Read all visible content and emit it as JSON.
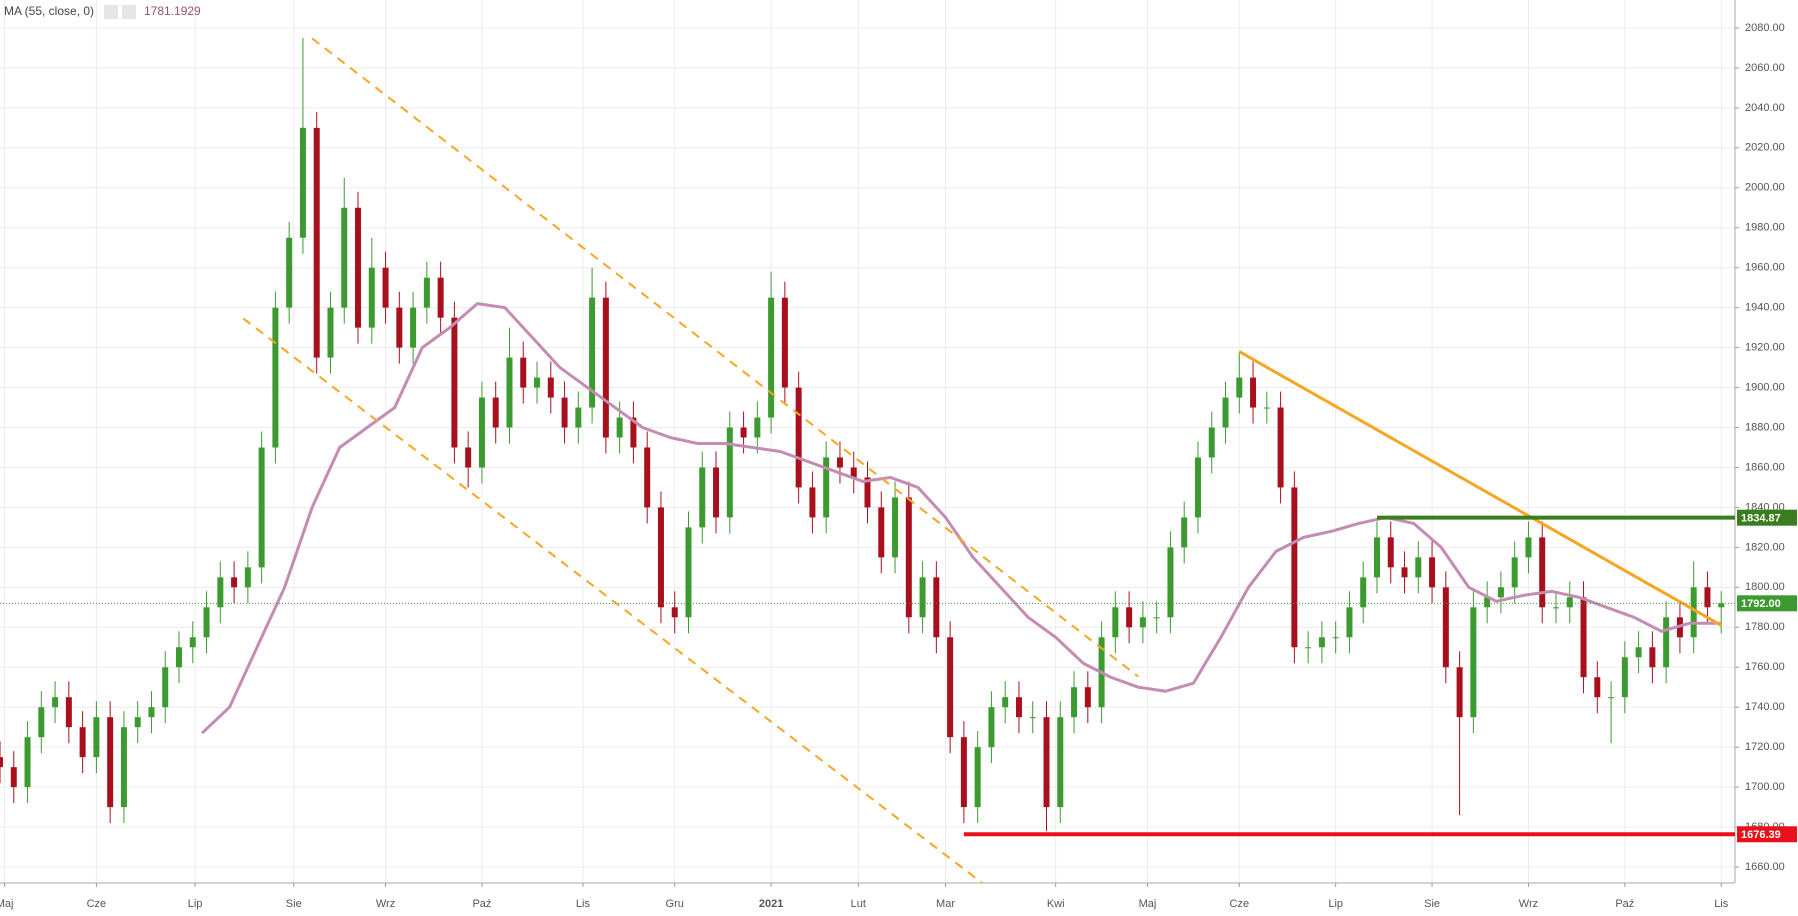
{
  "chart_data": {
    "type": "candlestick",
    "indicator_label": "MA (55, close, 0)",
    "indicator_value": 1781.1929,
    "up_color": "#3c9a31",
    "down_color": "#a8101e",
    "x": [
      0,
      3,
      6,
      9,
      12,
      15,
      18,
      21,
      24,
      27,
      30,
      33,
      36,
      39,
      42,
      45,
      48,
      51,
      54,
      57,
      60,
      63,
      66,
      69,
      72,
      75,
      78,
      81,
      84,
      87,
      90,
      93,
      96,
      99,
      102,
      105,
      108,
      111,
      114,
      117,
      120,
      123,
      126,
      129,
      132,
      135,
      138,
      141,
      144,
      147,
      150,
      153,
      156,
      159,
      162,
      165,
      168,
      171,
      174,
      177,
      180,
      183,
      186,
      189,
      192,
      195,
      198,
      201,
      204,
      207,
      210,
      213,
      216,
      219,
      222,
      225,
      228,
      231,
      234,
      237,
      240,
      243,
      246,
      249,
      252,
      255,
      258,
      261,
      264,
      267,
      270,
      273,
      276,
      279,
      282,
      285,
      288,
      291,
      294,
      297,
      300,
      303,
      306,
      309,
      312,
      315,
      318,
      321,
      324,
      327,
      330,
      333,
      336,
      339,
      342,
      345,
      348,
      351,
      354,
      357,
      360,
      363,
      366,
      369,
      372,
      375
    ],
    "open": [
      1715,
      1710,
      1700,
      1725,
      1740,
      1745,
      1730,
      1715,
      1735,
      1690,
      1730,
      1735,
      1740,
      1760,
      1770,
      1775,
      1790,
      1805,
      1800,
      1810,
      1870,
      1940,
      1975,
      2030,
      1915,
      1940,
      1990,
      1930,
      1960,
      1940,
      1920,
      1940,
      1955,
      1935,
      1870,
      1860,
      1895,
      1880,
      1915,
      1900,
      1905,
      1895,
      1880,
      1890,
      1945,
      1875,
      1885,
      1870,
      1840,
      1790,
      1785,
      1830,
      1860,
      1835,
      1880,
      1875,
      1885,
      1945,
      1900,
      1850,
      1835,
      1865,
      1860,
      1855,
      1840,
      1815,
      1845,
      1785,
      1805,
      1775,
      1725,
      1690,
      1720,
      1740,
      1745,
      1735,
      1735,
      1690,
      1735,
      1750,
      1740,
      1775,
      1790,
      1780,
      1785,
      1785,
      1820,
      1835,
      1865,
      1880,
      1895,
      1905,
      1890,
      1890,
      1850,
      1770,
      1770,
      1775,
      1775,
      1790,
      1805,
      1825,
      1810,
      1805,
      1815,
      1800,
      1760,
      1735,
      1790,
      1795,
      1800,
      1815,
      1825,
      1790,
      1790,
      1795,
      1755,
      1745,
      1745,
      1765,
      1770,
      1760,
      1785,
      1775,
      1800,
      1790
    ],
    "high": [
      1723,
      1718,
      1733,
      1748,
      1753,
      1753,
      1738,
      1743,
      1743,
      1738,
      1743,
      1748,
      1768,
      1778,
      1783,
      1798,
      1813,
      1813,
      1818,
      1878,
      1948,
      1983,
      2075,
      2038,
      1948,
      2005,
      1998,
      1975,
      1968,
      1948,
      1948,
      1963,
      1963,
      1943,
      1878,
      1903,
      1903,
      1930,
      1923,
      1913,
      1913,
      1903,
      1898,
      1960,
      1953,
      1893,
      1893,
      1878,
      1848,
      1798,
      1838,
      1868,
      1868,
      1888,
      1888,
      1893,
      1958,
      1953,
      1908,
      1858,
      1873,
      1873,
      1868,
      1863,
      1848,
      1853,
      1853,
      1813,
      1813,
      1783,
      1733,
      1728,
      1748,
      1753,
      1753,
      1743,
      1743,
      1743,
      1758,
      1758,
      1783,
      1798,
      1798,
      1793,
      1793,
      1828,
      1843,
      1873,
      1888,
      1903,
      1918,
      1913,
      1898,
      1898,
      1858,
      1778,
      1783,
      1783,
      1798,
      1813,
      1833,
      1833,
      1818,
      1823,
      1823,
      1808,
      1768,
      1798,
      1803,
      1808,
      1823,
      1833,
      1833,
      1798,
      1803,
      1803,
      1763,
      1753,
      1773,
      1778,
      1778,
      1793,
      1793,
      1813,
      1808,
      1798
    ],
    "low": [
      1702,
      1692,
      1692,
      1717,
      1732,
      1722,
      1707,
      1707,
      1682,
      1682,
      1722,
      1727,
      1732,
      1752,
      1762,
      1767,
      1782,
      1792,
      1792,
      1802,
      1862,
      1932,
      1967,
      1907,
      1907,
      1932,
      1922,
      1922,
      1932,
      1912,
      1912,
      1932,
      1927,
      1862,
      1850,
      1852,
      1872,
      1872,
      1892,
      1892,
      1887,
      1872,
      1872,
      1882,
      1867,
      1867,
      1862,
      1832,
      1782,
      1777,
      1777,
      1822,
      1827,
      1827,
      1867,
      1867,
      1877,
      1892,
      1842,
      1827,
      1827,
      1852,
      1847,
      1832,
      1807,
      1807,
      1777,
      1777,
      1767,
      1717,
      1682,
      1682,
      1712,
      1732,
      1727,
      1727,
      1678,
      1682,
      1727,
      1732,
      1732,
      1767,
      1772,
      1772,
      1777,
      1777,
      1812,
      1827,
      1857,
      1872,
      1887,
      1882,
      1882,
      1842,
      1762,
      1762,
      1762,
      1767,
      1767,
      1782,
      1797,
      1802,
      1797,
      1797,
      1792,
      1752,
      1686,
      1727,
      1782,
      1787,
      1792,
      1807,
      1782,
      1782,
      1782,
      1747,
      1737,
      1722,
      1737,
      1757,
      1752,
      1752,
      1767,
      1767,
      1782,
      1777
    ],
    "close": [
      1710,
      1700,
      1725,
      1740,
      1745,
      1730,
      1715,
      1735,
      1690,
      1730,
      1735,
      1740,
      1760,
      1770,
      1775,
      1790,
      1805,
      1800,
      1810,
      1870,
      1940,
      1975,
      2030,
      1915,
      1940,
      1990,
      1930,
      1960,
      1940,
      1920,
      1940,
      1955,
      1935,
      1870,
      1860,
      1895,
      1880,
      1915,
      1900,
      1905,
      1895,
      1880,
      1890,
      1945,
      1875,
      1885,
      1870,
      1840,
      1790,
      1785,
      1830,
      1860,
      1835,
      1880,
      1875,
      1885,
      1945,
      1900,
      1850,
      1835,
      1865,
      1860,
      1855,
      1840,
      1815,
      1845,
      1785,
      1805,
      1775,
      1725,
      1690,
      1720,
      1740,
      1745,
      1735,
      1735,
      1690,
      1735,
      1750,
      1740,
      1775,
      1790,
      1780,
      1785,
      1785,
      1820,
      1835,
      1865,
      1880,
      1895,
      1905,
      1890,
      1890,
      1850,
      1770,
      1770,
      1775,
      1775,
      1790,
      1805,
      1825,
      1810,
      1805,
      1815,
      1800,
      1760,
      1735,
      1790,
      1795,
      1800,
      1815,
      1825,
      1790,
      1790,
      1795,
      1755,
      1745,
      1745,
      1765,
      1770,
      1760,
      1785,
      1775,
      1800,
      1790,
      1792
    ],
    "ma": {
      "color": "#c48bb3",
      "x": [
        44,
        50,
        56,
        62,
        68,
        74,
        80,
        86,
        92,
        98,
        104,
        110,
        116,
        122,
        128,
        134,
        140,
        146,
        152,
        158,
        164,
        170,
        176,
        182,
        188,
        194,
        200,
        206,
        212,
        218,
        224,
        230,
        236,
        242,
        248,
        254,
        260,
        266,
        272,
        278,
        284,
        290,
        296,
        302,
        308,
        314,
        320,
        326,
        332,
        338,
        344,
        350,
        356,
        362,
        368,
        375
      ],
      "values": [
        1727,
        1740,
        1770,
        1800,
        1840,
        1870,
        1880,
        1890,
        1920,
        1930,
        1942,
        1940,
        1925,
        1910,
        1900,
        1890,
        1880,
        1875,
        1872,
        1872,
        1870,
        1868,
        1863,
        1858,
        1853,
        1855,
        1850,
        1835,
        1815,
        1800,
        1785,
        1775,
        1762,
        1755,
        1750,
        1748,
        1752,
        1775,
        1800,
        1818,
        1825,
        1828,
        1832,
        1835,
        1832,
        1820,
        1800,
        1793,
        1796,
        1798,
        1795,
        1790,
        1785,
        1778,
        1782,
        1782
      ]
    },
    "lines": [
      {
        "x": [
          68,
          248
        ],
        "y": [
          2074.8,
          1755.3
        ],
        "color": "#f5a623",
        "dashed": true
      },
      {
        "x": [
          53,
          214
        ],
        "y": [
          1934.6,
          1652
        ],
        "color": "#f5a623",
        "dashed": true
      },
      {
        "x": [
          270,
          375
        ],
        "y": [
          1918,
          1781
        ],
        "color": "#f5a623",
        "dashed": false
      }
    ],
    "levels": [
      {
        "value": 1834.87,
        "x_start": 300,
        "color": "#3a7d1e"
      },
      {
        "value": 1676.39,
        "x_start": 210,
        "color": "#e8101a"
      }
    ],
    "last_price": {
      "value": 1792,
      "label": "1792.00",
      "color": "#3c9a31"
    },
    "xlim": [
      0,
      378
    ],
    "ylim": [
      1652,
      2094
    ],
    "xticks": [
      {
        "value": 1,
        "label": "Maj"
      },
      {
        "value": 21,
        "label": "Cze"
      },
      {
        "value": 42.5,
        "label": "Lip"
      },
      {
        "value": 64,
        "label": "Sie"
      },
      {
        "value": 84,
        "label": "Wrz"
      },
      {
        "value": 105,
        "label": "Paź"
      },
      {
        "value": 127,
        "label": "Lis"
      },
      {
        "value": 147,
        "label": "Gru"
      },
      {
        "value": 168,
        "label": "2021"
      },
      {
        "value": 187,
        "label": "Lut"
      },
      {
        "value": 206,
        "label": "Mar"
      },
      {
        "value": 230,
        "label": "Kwi"
      },
      {
        "value": 250,
        "label": "Maj"
      },
      {
        "value": 270,
        "label": "Cze"
      },
      {
        "value": 291,
        "label": "Lip"
      },
      {
        "value": 312,
        "label": "Sie"
      },
      {
        "value": 333,
        "label": "Wrz"
      },
      {
        "value": 354,
        "label": "Paź"
      },
      {
        "value": 375,
        "label": "Lis"
      }
    ],
    "yticks": [
      {
        "value": 1660,
        "label": "1660.00"
      },
      {
        "value": 1680,
        "label": "1680.00"
      },
      {
        "value": 1700,
        "label": "1700.00"
      },
      {
        "value": 1720,
        "label": "1720.00"
      },
      {
        "value": 1740,
        "label": "1740.00"
      },
      {
        "value": 1760,
        "label": "1760.00"
      },
      {
        "value": 1780,
        "label": "1780.00"
      },
      {
        "value": 1800,
        "label": "1800.00"
      },
      {
        "value": 1820,
        "label": "1820.00"
      },
      {
        "value": 1840,
        "label": "1840.00"
      },
      {
        "value": 1860,
        "label": "1860.00"
      },
      {
        "value": 1880,
        "label": "1880.00"
      },
      {
        "value": 1900,
        "label": "1900.00"
      },
      {
        "value": 1920,
        "label": "1920.00"
      },
      {
        "value": 1940,
        "label": "1940.00"
      },
      {
        "value": 1960,
        "label": "1960.00"
      },
      {
        "value": 1980,
        "label": "1980.00"
      },
      {
        "value": 2000,
        "label": "2000.00"
      },
      {
        "value": 2020,
        "label": "2020.00"
      },
      {
        "value": 2040,
        "label": "2040.00"
      },
      {
        "value": 2060,
        "label": "2060.00"
      },
      {
        "value": 2080,
        "label": "2080.00"
      }
    ],
    "grid": true
  }
}
